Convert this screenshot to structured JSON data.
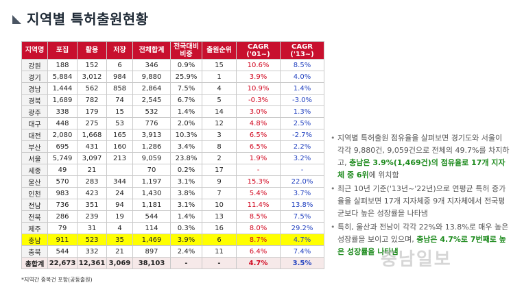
{
  "title": "지역별 특허출원현황",
  "table": {
    "headers": [
      "지역명",
      "포집",
      "활용",
      "저장",
      "전체합계",
      "전국대비 비중",
      "출원순위",
      "CAGR ('01~)",
      "CAGR ('13~)"
    ],
    "rows": [
      [
        "강원",
        "188",
        "152",
        "6",
        "346",
        "0.9%",
        "15",
        "10.6%",
        "8.5%"
      ],
      [
        "경기",
        "5,884",
        "3,012",
        "984",
        "9,880",
        "25.9%",
        "1",
        "3.9%",
        "4.0%"
      ],
      [
        "경남",
        "1,444",
        "562",
        "858",
        "2,864",
        "7.5%",
        "4",
        "10.9%",
        "1.4%"
      ],
      [
        "경북",
        "1,689",
        "782",
        "74",
        "2,545",
        "6.7%",
        "5",
        "-0.3%",
        "-3.0%"
      ],
      [
        "광주",
        "338",
        "179",
        "15",
        "532",
        "1.4%",
        "14",
        "3.0%",
        "1.3%"
      ],
      [
        "대구",
        "448",
        "275",
        "53",
        "776",
        "2.0%",
        "12",
        "4.8%",
        "2.5%"
      ],
      [
        "대전",
        "2,080",
        "1,668",
        "165",
        "3,913",
        "10.3%",
        "3",
        "6.5%",
        "-2.7%"
      ],
      [
        "부산",
        "695",
        "431",
        "160",
        "1,286",
        "3.4%",
        "8",
        "6.5%",
        "2.2%"
      ],
      [
        "서울",
        "5,749",
        "3,097",
        "213",
        "9,059",
        "23.8%",
        "2",
        "1.9%",
        "3.2%"
      ],
      [
        "세종",
        "49",
        "21",
        "",
        "70",
        "0.2%",
        "17",
        "-",
        "-"
      ],
      [
        "울산",
        "570",
        "283",
        "344",
        "1,197",
        "3.1%",
        "9",
        "15.3%",
        "22.0%"
      ],
      [
        "인천",
        "983",
        "423",
        "24",
        "1,430",
        "3.8%",
        "7",
        "5.4%",
        "3.7%"
      ],
      [
        "전남",
        "736",
        "351",
        "94",
        "1,181",
        "3.1%",
        "10",
        "11.4%",
        "13.8%"
      ],
      [
        "전북",
        "286",
        "239",
        "19",
        "544",
        "1.4%",
        "13",
        "8.5%",
        "7.5%"
      ],
      [
        "제주",
        "79",
        "31",
        "4",
        "114",
        "0.3%",
        "16",
        "8.0%",
        "29.2%"
      ],
      [
        "충남",
        "911",
        "523",
        "35",
        "1,469",
        "3.9%",
        "6",
        "8.7%",
        "4.7%"
      ],
      [
        "충북",
        "544",
        "332",
        "21",
        "897",
        "2.4%",
        "11",
        "6.4%",
        "7.4%"
      ]
    ],
    "highlight_row": 15,
    "total": [
      "총합계",
      "22,673",
      "12,361",
      "3,069",
      "38,103",
      "-",
      "-",
      "4.7%",
      "3.5%"
    ]
  },
  "footnote": "*지역간 중복건 포함(공동출원)",
  "bullets": [
    {
      "parts": [
        {
          "t": "지역별 특허출원 점유율을 살펴보면 경기도와 서울이 각각 9,880건, 9,059건으로 전체의 49.7%를 차지하고, ",
          "em": false
        },
        {
          "t": "충남은 3.9%(1,469건)의 점유율로 17개 지자체 중 6위",
          "em": true
        },
        {
          "t": "에 위치함",
          "em": false
        }
      ]
    },
    {
      "parts": [
        {
          "t": "최근 10년 기준('13년~'22년)으로 연평균 특허 증가율을 살펴보면 17개 지자체중 9개 지자체에서 전국평균보다 높은 성장률을 나타냄",
          "em": false
        }
      ]
    },
    {
      "parts": [
        {
          "t": "특히, 울산과 전남이 각각 22%와 13.8%로 매우 높은 성장률을 보이고 있으며, ",
          "em": false
        },
        {
          "t": "충남은 4.7%로 7번째로 높은 성장률을 나타냄",
          "em": true
        }
      ]
    }
  ],
  "colors": {
    "header_bg": "#c8102e",
    "highlight_row": "#ffff00",
    "cagr_01": "#d0021b",
    "cagr_13": "#1f3fbf",
    "emphasis": "#1c8a1c"
  },
  "watermark": "충남일보"
}
